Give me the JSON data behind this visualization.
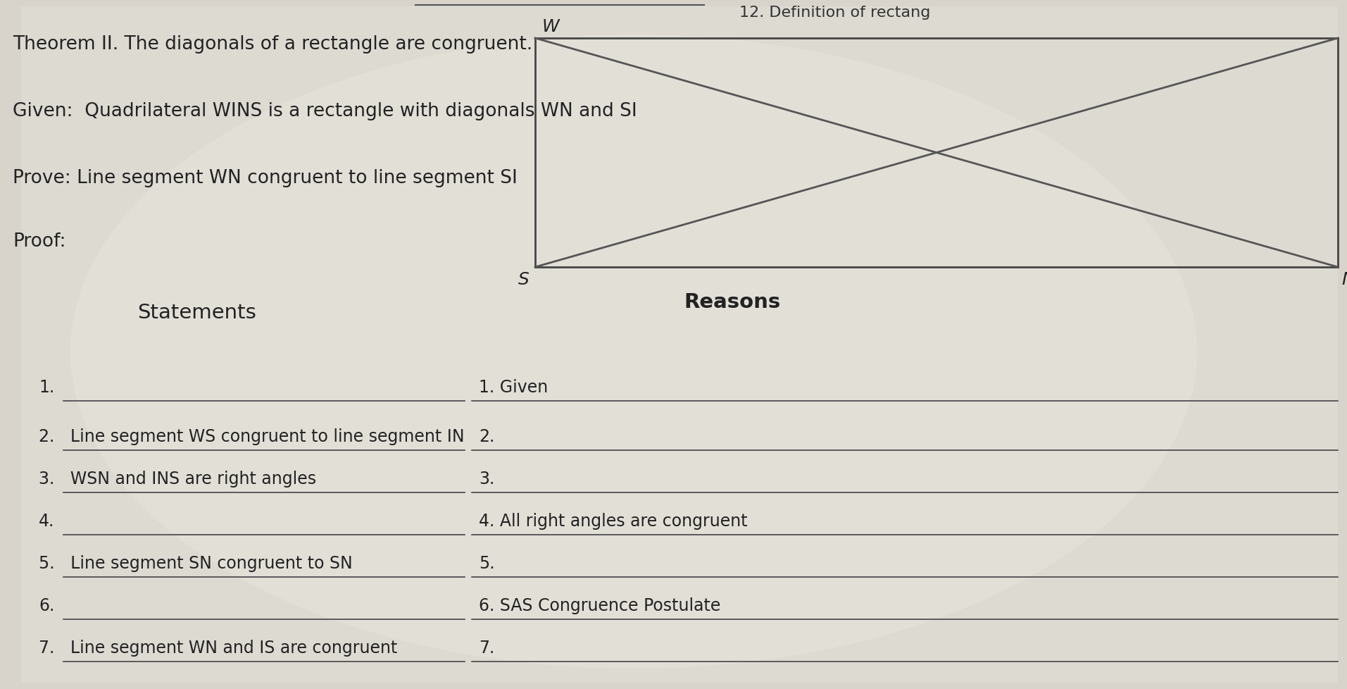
{
  "bg_color": "#c8c4bc",
  "title_top": "12. Definition of rectang",
  "theorem": "Theorem II. The diagonals of a rectangle are congruent.",
  "given": "Given:  Quadrilateral WINS is a rectangle with diagonals WN and SI",
  "prove": "Prove: Line segment WN congruent to line segment SI",
  "proof_label": "Proof:",
  "statements_header": "Statements",
  "reasons_header": "Reasons",
  "statements": [
    "1.",
    "2.   Line segment WS congruent to line segment IN",
    "3.   WSN and INS are right angles",
    "4.",
    "5.   Line segment SN congruent to SN",
    "6.",
    "7.   Line segment WN and IS are congruent"
  ],
  "reasons": [
    "1. Given",
    "2.",
    "3.",
    "4. All right angles are congruent",
    "5.",
    "6. SAS Congruence Postulate",
    "7."
  ],
  "rect_label_W": "W",
  "rect_label_S": "S",
  "rect_label_N": "N"
}
